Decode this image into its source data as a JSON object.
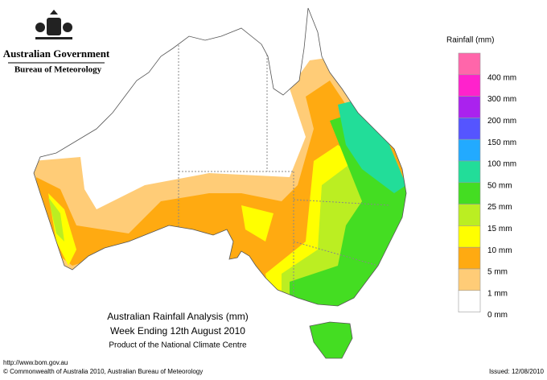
{
  "header": {
    "government": "Australian Government",
    "bureau": "Bureau of Meteorology"
  },
  "legend": {
    "title": "Rainfall (mm)",
    "colors": [
      "#ff66aa",
      "#ff22cc",
      "#aa22ee",
      "#5555ff",
      "#22aaff",
      "#22dd99",
      "#44dd22",
      "#bbee22",
      "#ffff00",
      "#ffaa11",
      "#ffcc77",
      "#ffffff"
    ],
    "labels": [
      "400 mm",
      "300 mm",
      "200 mm",
      "150 mm",
      "100 mm",
      "50 mm",
      "25 mm",
      "15 mm",
      "10 mm",
      "5 mm",
      "1 mm",
      "0 mm"
    ]
  },
  "map_title": {
    "line1": "Australian Rainfall Analysis (mm)",
    "line2": "Week Ending 12th August 2010",
    "line3": "Product of the National Climate Centre"
  },
  "footer": {
    "url": "http://www.bom.gov.au",
    "copyright": "© Commonwealth of Australia 2010, Australian Bureau of Meteorology",
    "issued": "Issued: 12/08/2010"
  }
}
